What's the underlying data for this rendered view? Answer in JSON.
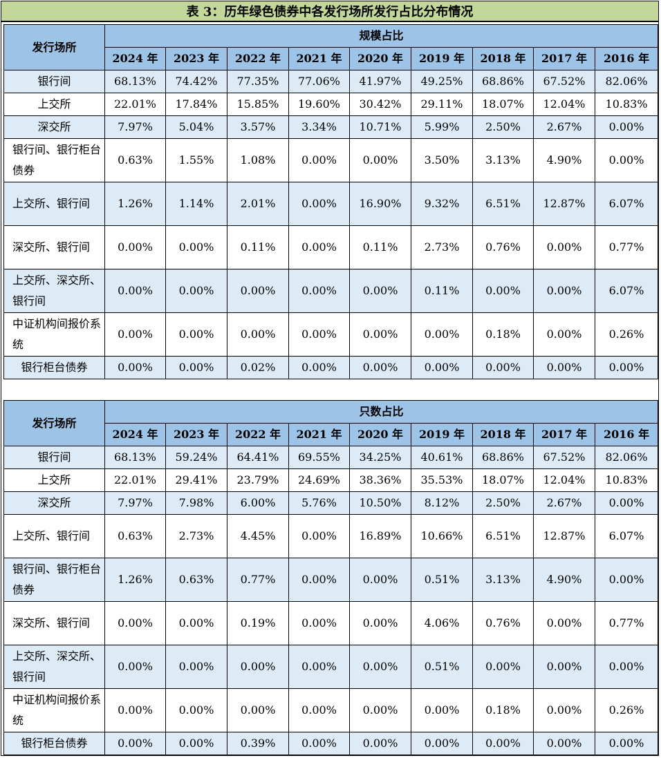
{
  "title": "表 3：历年绿色债券中各发行场所发行占比分布情况",
  "venue_header": "发行场所",
  "years": [
    "2024 年",
    "2023 年",
    "2022 年",
    "2021 年",
    "2020 年",
    "2019 年",
    "2018 年",
    "2017 年",
    "2016 年"
  ],
  "scale_table": {
    "group_header": "规模占比",
    "rows": [
      {
        "venue": "银行间",
        "values": [
          "68.13%",
          "74.42%",
          "77.35%",
          "77.06%",
          "41.97%",
          "49.25%",
          "68.86%",
          "67.52%",
          "82.06%"
        ]
      },
      {
        "venue": "上交所",
        "values": [
          "22.01%",
          "17.84%",
          "15.85%",
          "19.60%",
          "30.42%",
          "29.11%",
          "18.07%",
          "12.04%",
          "10.83%"
        ]
      },
      {
        "venue": "深交所",
        "values": [
          "7.97%",
          "5.04%",
          "3.57%",
          "3.34%",
          "10.71%",
          "5.99%",
          "2.50%",
          "2.67%",
          "0.00%"
        ]
      },
      {
        "venue": "银行间、银行柜台债券",
        "values": [
          "0.63%",
          "1.55%",
          "1.08%",
          "0.00%",
          "0.00%",
          "3.50%",
          "3.13%",
          "4.90%",
          "0.00%"
        ]
      },
      {
        "venue": "上交所、银行间",
        "values": [
          "1.26%",
          "1.14%",
          "2.01%",
          "0.00%",
          "16.90%",
          "9.32%",
          "6.51%",
          "12.87%",
          "6.07%"
        ]
      },
      {
        "venue": "深交所、银行间",
        "values": [
          "0.00%",
          "0.00%",
          "0.11%",
          "0.00%",
          "0.11%",
          "2.73%",
          "0.76%",
          "0.00%",
          "0.77%"
        ]
      },
      {
        "venue": "上交所、深交所、银行间",
        "values": [
          "0.00%",
          "0.00%",
          "0.00%",
          "0.00%",
          "0.00%",
          "0.11%",
          "0.00%",
          "0.00%",
          "6.07%"
        ]
      },
      {
        "venue": "中证机构间报价系统",
        "values": [
          "0.00%",
          "0.00%",
          "0.00%",
          "0.00%",
          "0.00%",
          "0.00%",
          "0.18%",
          "0.00%",
          "0.26%"
        ]
      },
      {
        "venue": "银行柜台债券",
        "values": [
          "0.00%",
          "0.00%",
          "0.02%",
          "0.00%",
          "0.00%",
          "0.00%",
          "0.00%",
          "0.00%",
          "0.00%"
        ]
      }
    ]
  },
  "count_table": {
    "group_header": "只数占比",
    "rows": [
      {
        "venue": "银行间",
        "values": [
          "68.13%",
          "59.24%",
          "64.41%",
          "69.55%",
          "34.25%",
          "40.61%",
          "68.86%",
          "67.52%",
          "82.06%"
        ]
      },
      {
        "venue": "上交所",
        "values": [
          "22.01%",
          "29.41%",
          "23.79%",
          "24.69%",
          "38.36%",
          "35.53%",
          "18.07%",
          "12.04%",
          "10.83%"
        ]
      },
      {
        "venue": "深交所",
        "values": [
          "7.97%",
          "7.98%",
          "6.00%",
          "5.76%",
          "10.50%",
          "8.12%",
          "2.50%",
          "2.67%",
          "0.00%"
        ]
      },
      {
        "venue": "上交所、银行间",
        "values": [
          "0.63%",
          "2.73%",
          "4.45%",
          "0.00%",
          "16.89%",
          "10.66%",
          "6.51%",
          "12.87%",
          "6.07%"
        ]
      },
      {
        "venue": "银行间、银行柜台债券",
        "values": [
          "1.26%",
          "0.63%",
          "0.77%",
          "0.00%",
          "0.00%",
          "0.51%",
          "3.13%",
          "4.90%",
          "0.00%"
        ]
      },
      {
        "venue": "深交所、银行间",
        "values": [
          "0.00%",
          "0.00%",
          "0.19%",
          "0.00%",
          "0.00%",
          "4.06%",
          "0.76%",
          "0.00%",
          "0.77%"
        ]
      },
      {
        "venue": "上交所、深交所、银行间",
        "values": [
          "0.00%",
          "0.00%",
          "0.00%",
          "0.00%",
          "0.00%",
          "0.51%",
          "0.00%",
          "0.00%",
          "0.00%"
        ]
      },
      {
        "venue": "中证机构间报价系统",
        "values": [
          "0.00%",
          "0.00%",
          "0.00%",
          "0.00%",
          "0.00%",
          "0.00%",
          "0.18%",
          "0.00%",
          "0.26%"
        ]
      },
      {
        "venue": "银行柜台债券",
        "values": [
          "0.00%",
          "0.00%",
          "0.39%",
          "0.00%",
          "0.00%",
          "0.00%",
          "0.00%",
          "0.00%",
          "0.00%"
        ]
      }
    ]
  }
}
